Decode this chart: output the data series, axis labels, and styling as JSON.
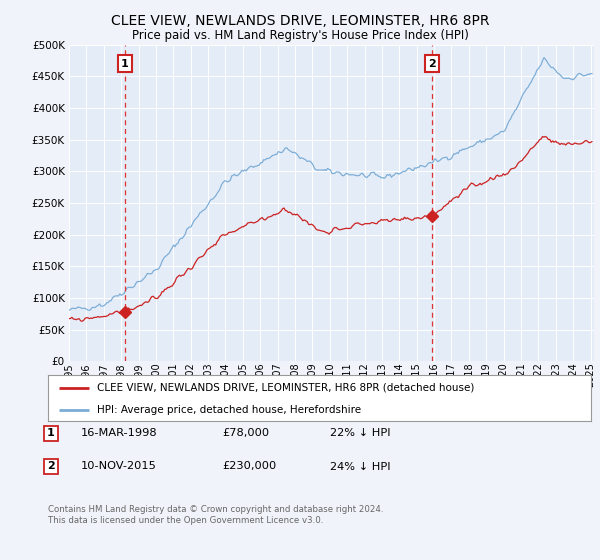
{
  "title": "CLEE VIEW, NEWLANDS DRIVE, LEOMINSTER, HR6 8PR",
  "subtitle": "Price paid vs. HM Land Registry's House Price Index (HPI)",
  "background_color": "#f0f4fa",
  "plot_bg_color": "#e4ecf7",
  "ylim": [
    0,
    500000
  ],
  "yticks": [
    0,
    50000,
    100000,
    150000,
    200000,
    250000,
    300000,
    350000,
    400000,
    450000,
    500000
  ],
  "xlim_start": 1995.0,
  "xlim_end": 2025.2,
  "purchase1_date": 1998.21,
  "purchase1_price": 78000,
  "purchase2_date": 2015.87,
  "purchase2_price": 230000,
  "legend_line1": "CLEE VIEW, NEWLANDS DRIVE, LEOMINSTER, HR6 8PR (detached house)",
  "legend_line2": "HPI: Average price, detached house, Herefordshire",
  "footer": "Contains HM Land Registry data © Crown copyright and database right 2024.\nThis data is licensed under the Open Government Licence v3.0.",
  "red_line_color": "#cc2222",
  "blue_line_color": "#7aacd6",
  "grid_color": "#ffffff",
  "vline_color": "#dd3333"
}
